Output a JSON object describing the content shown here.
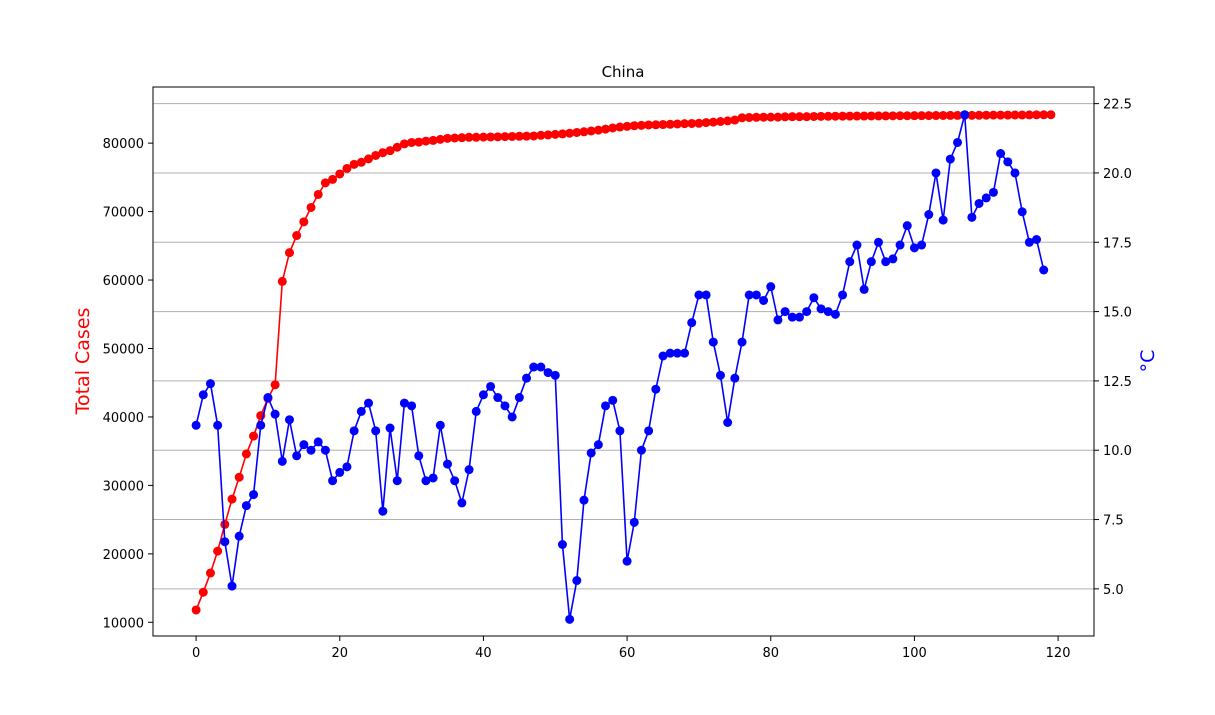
{
  "chart_data": {
    "type": "line",
    "title": "China",
    "xlabel": "",
    "xlim": [
      -6,
      125
    ],
    "xticks": [
      0,
      20,
      40,
      60,
      80,
      100,
      120
    ],
    "left_axis": {
      "label": "Total Cases",
      "color": "#ff0000",
      "ylim": [
        8000,
        88200
      ],
      "ticks": [
        10000,
        20000,
        30000,
        40000,
        50000,
        60000,
        70000,
        80000
      ]
    },
    "right_axis": {
      "label": "°C",
      "color": "#0000ff",
      "ylim": [
        3.3,
        23.1
      ],
      "ticks": [
        5.0,
        7.5,
        10.0,
        12.5,
        15.0,
        17.5,
        20.0,
        22.5
      ],
      "tick_labels": [
        "5.0",
        "7.5",
        "10.0",
        "12.5",
        "15.0",
        "17.5",
        "20.0",
        "22.5"
      ]
    },
    "grid": "horizontal (right axis ticks)",
    "series": [
      {
        "axis": "left",
        "color": "#ff0000",
        "x_start": 0,
        "values": [
          11800,
          14400,
          17200,
          20400,
          24300,
          28000,
          31200,
          34600,
          37200,
          40200,
          42700,
          44700,
          59800,
          64000,
          66500,
          68500,
          70600,
          72500,
          74200,
          74700,
          75500,
          76300,
          76900,
          77200,
          77700,
          78200,
          78600,
          78900,
          79400,
          79900,
          80100,
          80150,
          80300,
          80400,
          80550,
          80700,
          80750,
          80800,
          80850,
          80850,
          80880,
          80900,
          80920,
          80950,
          80970,
          81000,
          81020,
          81050,
          81150,
          81200,
          81280,
          81350,
          81450,
          81560,
          81660,
          81780,
          81900,
          82050,
          82220,
          82350,
          82450,
          82540,
          82600,
          82650,
          82680,
          82720,
          82750,
          82800,
          82850,
          82870,
          82900,
          83000,
          83070,
          83160,
          83250,
          83370,
          83700,
          83750,
          83780,
          83790,
          83800,
          83800,
          83850,
          83870,
          83870,
          83870,
          83900,
          83910,
          83920,
          83930,
          83940,
          83950,
          83960,
          83960,
          83970,
          83980,
          83980,
          83990,
          84000,
          84000,
          84010,
          84010,
          84020,
          84030,
          84040,
          84050,
          84050,
          84060,
          84060,
          84070,
          84080,
          84090,
          84100,
          84100,
          84110,
          84110,
          84120,
          84130,
          84140,
          84150
        ]
      },
      {
        "axis": "right",
        "color": "#0000ff",
        "x_start": 0,
        "values": [
          10.9,
          12.0,
          12.4,
          10.9,
          6.7,
          5.1,
          6.9,
          8.0,
          8.4,
          10.9,
          11.9,
          11.3,
          9.6,
          11.1,
          9.8,
          10.2,
          10.0,
          10.3,
          10.0,
          8.9,
          9.2,
          9.4,
          10.7,
          11.4,
          11.7,
          10.7,
          7.8,
          10.8,
          8.9,
          11.7,
          11.6,
          9.8,
          8.9,
          9.0,
          10.9,
          9.5,
          8.9,
          8.1,
          9.3,
          11.4,
          12.0,
          12.3,
          11.9,
          11.6,
          11.2,
          11.9,
          12.6,
          13.0,
          13.0,
          12.8,
          12.7,
          6.6,
          3.9,
          5.3,
          8.2,
          9.9,
          10.2,
          11.6,
          11.8,
          10.7,
          6.0,
          7.4,
          10.0,
          10.7,
          12.2,
          13.4,
          13.5,
          13.5,
          13.5,
          14.6,
          15.6,
          15.6,
          13.9,
          12.7,
          11.0,
          12.6,
          13.9,
          15.6,
          15.6,
          15.4,
          15.9,
          14.7,
          15.0,
          14.8,
          14.8,
          15.0,
          15.5,
          15.1,
          15.0,
          14.9,
          15.6,
          16.8,
          17.4,
          15.8,
          16.8,
          17.5,
          16.8,
          16.9,
          17.4,
          18.1,
          17.3,
          17.4,
          18.5,
          20.0,
          18.3,
          20.5,
          21.1,
          22.1,
          18.4,
          18.9,
          19.1,
          19.3,
          20.7,
          20.4,
          20.0,
          18.6,
          17.5,
          17.6,
          16.5
        ]
      }
    ]
  }
}
